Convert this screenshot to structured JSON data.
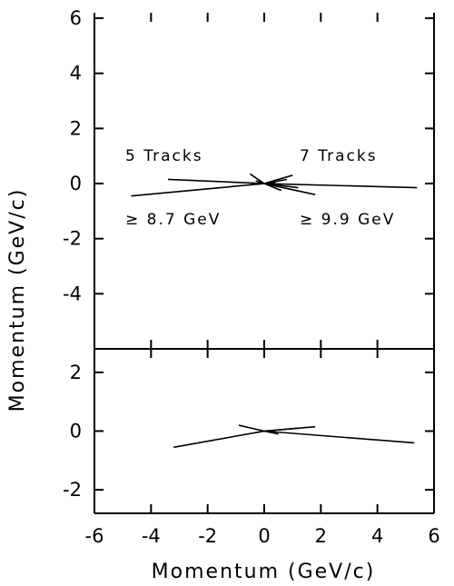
{
  "chart_data": [
    {
      "type": "line",
      "panel": "top",
      "xlabel": "Momentum (GeV/c)",
      "ylabel": "Momentum (GeV/c)",
      "xlim": [
        -6,
        6
      ],
      "ylim": [
        -6,
        6.2
      ],
      "x_ticks": [
        -6,
        -4,
        -2,
        0,
        2,
        4,
        6
      ],
      "y_tick_labels": [
        "6",
        "4",
        "2",
        "0",
        "-2",
        "-4"
      ],
      "y_tick_values": [
        6,
        4,
        2,
        0,
        -2,
        -4
      ],
      "annotations": [
        "5 Tracks",
        "7 Tracks",
        "≥ 8.7 GeV",
        "≥ 9.9 GeV"
      ],
      "series": [
        {
          "tracks": [
            {
              "x": [
                0,
                -4.7
              ],
              "y": [
                0,
                -0.45
              ]
            },
            {
              "x": [
                0,
                -3.4
              ],
              "y": [
                0,
                0.15
              ]
            },
            {
              "x": [
                0,
                5.4
              ],
              "y": [
                0,
                -0.15
              ]
            },
            {
              "x": [
                0,
                1.8
              ],
              "y": [
                0,
                -0.4
              ]
            },
            {
              "x": [
                0,
                1.0
              ],
              "y": [
                0,
                0.3
              ]
            },
            {
              "x": [
                0,
                -0.5
              ],
              "y": [
                0,
                0.35
              ]
            },
            {
              "x": [
                0,
                1.2
              ],
              "y": [
                0,
                -0.15
              ]
            },
            {
              "x": [
                0,
                0.8
              ],
              "y": [
                0,
                0.15
              ]
            },
            {
              "x": [
                0,
                0.6
              ],
              "y": [
                0,
                -0.25
              ]
            },
            {
              "x": [
                0,
                -0.3
              ],
              "y": [
                0,
                0.1
              ]
            },
            {
              "x": [
                0,
                0.4
              ],
              "y": [
                0,
                0.05
              ]
            }
          ]
        }
      ]
    },
    {
      "type": "line",
      "panel": "bottom",
      "xlabel": "Momentum (GeV/c)",
      "ylabel": "Momentum (GeV/c)",
      "xlim": [
        -6,
        6
      ],
      "ylim": [
        -2.8,
        2.8
      ],
      "x_ticks": [
        -6,
        -4,
        -2,
        0,
        2,
        4,
        6
      ],
      "x_tick_labels": [
        "-6",
        "-4",
        "-2",
        "0",
        "2",
        "4",
        "6"
      ],
      "y_tick_labels": [
        "2",
        "0",
        "-2"
      ],
      "y_tick_values": [
        2,
        0,
        -2
      ],
      "series": [
        {
          "tracks": [
            {
              "x": [
                0,
                -3.2
              ],
              "y": [
                0,
                -0.55
              ]
            },
            {
              "x": [
                0,
                5.3
              ],
              "y": [
                0,
                -0.4
              ]
            },
            {
              "x": [
                0,
                -0.9
              ],
              "y": [
                0,
                0.2
              ]
            },
            {
              "x": [
                0,
                1.8
              ],
              "y": [
                0,
                0.15
              ]
            },
            {
              "x": [
                0,
                1.2
              ],
              "y": [
                0,
                0.1
              ]
            },
            {
              "x": [
                0,
                0.5
              ],
              "y": [
                0,
                -0.1
              ]
            },
            {
              "x": [
                0,
                -0.3
              ],
              "y": [
                0,
                -0.05
              ]
            }
          ]
        }
      ]
    }
  ]
}
